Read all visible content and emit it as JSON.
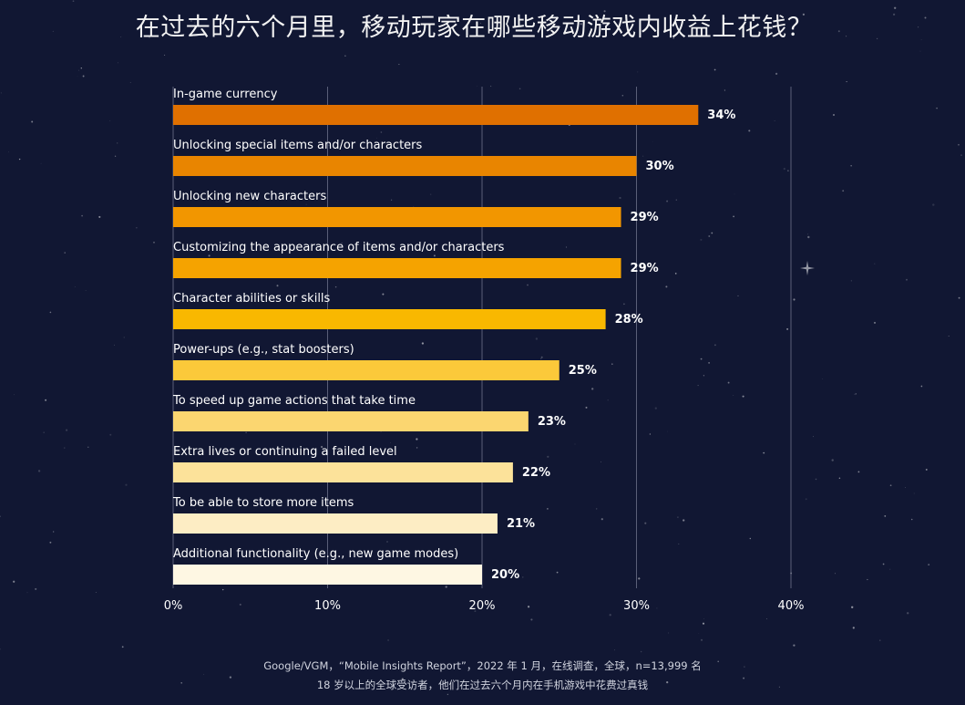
{
  "title": "在过去的六个月里，移动玩家在哪些移动游戏内收益上花钱？",
  "source": {
    "line1": "Google/VGM，“Mobile Insights Report”，2022 年 1 月，在线调查，全球，n=13,999 名",
    "line2": "18 岁以上的全球受访者，他们在过去六个月内在手机游戏中花费过真钱"
  },
  "colors": {
    "background": "#111733",
    "bars": [
      "#e07000",
      "#e98500",
      "#f29600",
      "#f5a300",
      "#f9b800",
      "#fbc93a",
      "#fbd670",
      "#fce29a",
      "#fdedc4",
      "#fef7e3"
    ]
  },
  "chart_data": {
    "type": "bar",
    "orientation": "horizontal",
    "categories": [
      "In-game currency",
      "Unlocking special items and/or characters",
      "Unlocking new characters",
      "Customizing the appearance of items and/or characters",
      "Character abilities or skills",
      "Power-ups (e.g., stat boosters)",
      "To speed up game actions that take time",
      "Extra lives or continuing a failed level",
      "To be able to store more items",
      "Additional functionality (e.g., new game modes)"
    ],
    "values": [
      34,
      30,
      29,
      29,
      28,
      25,
      23,
      22,
      21,
      20
    ],
    "value_labels": [
      "34%",
      "30%",
      "29%",
      "29%",
      "28%",
      "25%",
      "23%",
      "22%",
      "21%",
      "20%"
    ],
    "xlim": [
      0,
      40
    ],
    "x_ticks": [
      "0%",
      "10%",
      "20%",
      "30%",
      "40%"
    ],
    "grid": true
  }
}
